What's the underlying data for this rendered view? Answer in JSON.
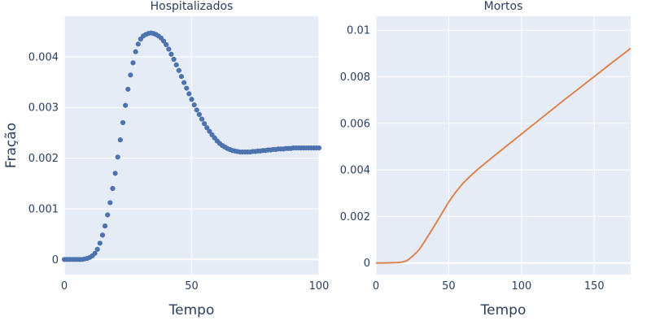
{
  "chart_data": [
    {
      "type": "scatter",
      "title": "Hospitalizados",
      "xlabel": "Tempo",
      "ylabel": "Fração",
      "xlim": [
        0,
        100
      ],
      "ylim": [
        -0.0003,
        0.0048
      ],
      "xticks": [
        0,
        50,
        100
      ],
      "yticks": [
        0,
        0.001,
        0.002,
        0.003,
        0.004
      ],
      "xtick_labels": [
        "0",
        "50",
        "100"
      ],
      "ytick_labels": [
        "0",
        "0.001",
        "0.002",
        "0.003",
        "0.004"
      ],
      "grid": true,
      "marker_color": "#4c72b0",
      "series": [
        {
          "x": [
            0,
            1,
            2,
            3,
            4,
            5,
            6,
            7,
            8,
            9,
            10,
            11,
            12,
            13,
            14,
            15,
            16,
            17,
            18,
            19,
            20,
            21,
            22,
            23,
            24,
            25,
            26,
            27,
            28,
            29,
            30,
            31,
            32,
            33,
            34,
            35,
            36,
            37,
            38,
            39,
            40,
            41,
            42,
            43,
            44,
            45,
            46,
            47,
            48,
            49,
            50,
            51,
            52,
            53,
            54,
            55,
            56,
            57,
            58,
            59,
            60,
            61,
            62,
            63,
            64,
            65,
            66,
            67,
            68,
            69,
            70,
            71,
            72,
            73,
            74,
            75,
            76,
            77,
            78,
            79,
            80,
            81,
            82,
            83,
            84,
            85,
            86,
            87,
            88,
            89,
            90,
            91,
            92,
            93,
            94,
            95,
            96,
            97,
            98,
            99,
            100
          ],
          "y": [
            0,
            0,
            0,
            0,
            0,
            0,
            0,
            0,
            1e-05,
            2e-05,
            4e-05,
            7e-05,
            0.00012,
            0.0002,
            0.00032,
            0.00048,
            0.00066,
            0.00088,
            0.00112,
            0.0014,
            0.0017,
            0.00202,
            0.00236,
            0.0027,
            0.00304,
            0.00336,
            0.00364,
            0.00388,
            0.0041,
            0.00425,
            0.00435,
            0.00441,
            0.00444,
            0.00446,
            0.00447,
            0.00446,
            0.00444,
            0.00441,
            0.00437,
            0.00431,
            0.00424,
            0.00415,
            0.00405,
            0.00395,
            0.00384,
            0.00373,
            0.00361,
            0.00349,
            0.00338,
            0.00327,
            0.00316,
            0.00305,
            0.00295,
            0.00286,
            0.00277,
            0.00268,
            0.0026,
            0.00253,
            0.00246,
            0.0024,
            0.00234,
            0.00229,
            0.00225,
            0.00222,
            0.00219,
            0.00217,
            0.00215,
            0.00214,
            0.00213,
            0.00212,
            0.00212,
            0.00212,
            0.00212,
            0.00212,
            0.00213,
            0.00213,
            0.00214,
            0.00214,
            0.00215,
            0.00215,
            0.00216,
            0.00216,
            0.00217,
            0.00217,
            0.00218,
            0.00218,
            0.00218,
            0.00219,
            0.00219,
            0.00219,
            0.0022,
            0.0022,
            0.0022,
            0.0022,
            0.0022,
            0.0022,
            0.0022,
            0.0022,
            0.0022,
            0.0022,
            0.0022
          ]
        }
      ]
    },
    {
      "type": "line",
      "title": "Mortos",
      "xlabel": "Tempo",
      "ylabel": "",
      "xlim": [
        0,
        175
      ],
      "ylim": [
        -0.0005,
        0.0106
      ],
      "xticks": [
        0,
        50,
        100,
        150
      ],
      "yticks": [
        0,
        0.002,
        0.004,
        0.006,
        0.008,
        0.01
      ],
      "xtick_labels": [
        "0",
        "50",
        "100",
        "150"
      ],
      "ytick_labels": [
        "0",
        "0.002",
        "0.004",
        "0.006",
        "0.008",
        "0.01"
      ],
      "grid": true,
      "line_color": "#dd8452",
      "series": [
        {
          "x": [
            0,
            5,
            10,
            15,
            18,
            20,
            22,
            25,
            28,
            30,
            33,
            36,
            40,
            45,
            50,
            55,
            60,
            65,
            70,
            80,
            90,
            100,
            110,
            120,
            130,
            140,
            150,
            160,
            170,
            175
          ],
          "y": [
            0,
            0,
            1e-05,
            2e-05,
            4e-05,
            7e-05,
            0.00013,
            0.00028,
            0.00046,
            0.0006,
            0.00088,
            0.00118,
            0.00158,
            0.0021,
            0.00262,
            0.00306,
            0.00344,
            0.00374,
            0.00403,
            0.00454,
            0.00504,
            0.00554,
            0.00604,
            0.00654,
            0.00704,
            0.00752,
            0.00801,
            0.0085,
            0.00898,
            0.00922
          ]
        }
      ]
    }
  ]
}
